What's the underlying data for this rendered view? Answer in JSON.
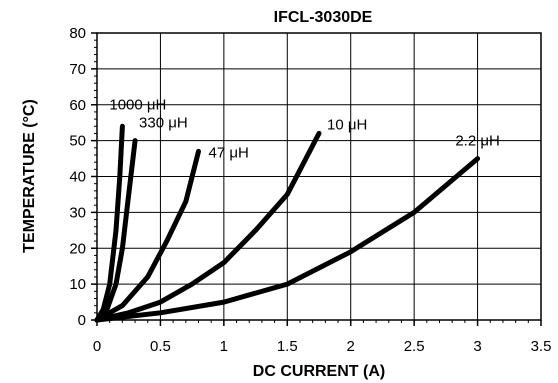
{
  "chart_data": {
    "type": "line",
    "title": "IFCL-3030DE",
    "xlabel": "DC CURRENT (A)",
    "ylabel": "TEMPERATURE (°C)",
    "xlim": [
      0,
      3.5
    ],
    "ylim": [
      0,
      80
    ],
    "x_ticks": [
      "0",
      "0.5",
      "1",
      "1.5",
      "2",
      "2.5",
      "3",
      "3.5"
    ],
    "y_ticks": [
      "0",
      "10",
      "20",
      "30",
      "40",
      "50",
      "60",
      "70",
      "80"
    ],
    "grid": true,
    "line_color": "#000000",
    "series": [
      {
        "name": "1000 μH",
        "points": [
          [
            0,
            0
          ],
          [
            0.05,
            3
          ],
          [
            0.1,
            10
          ],
          [
            0.15,
            25
          ],
          [
            0.18,
            40
          ],
          [
            0.2,
            54
          ]
        ]
      },
      {
        "name": "330 μH",
        "points": [
          [
            0,
            0
          ],
          [
            0.08,
            3
          ],
          [
            0.15,
            10
          ],
          [
            0.2,
            20
          ],
          [
            0.25,
            35
          ],
          [
            0.3,
            50
          ]
        ]
      },
      {
        "name": "47 μH",
        "points": [
          [
            0,
            0
          ],
          [
            0.2,
            4
          ],
          [
            0.4,
            12
          ],
          [
            0.55,
            22
          ],
          [
            0.7,
            33
          ],
          [
            0.8,
            47
          ]
        ]
      },
      {
        "name": "10 μH",
        "points": [
          [
            0,
            0
          ],
          [
            0.25,
            2
          ],
          [
            0.5,
            5
          ],
          [
            0.75,
            10
          ],
          [
            1.0,
            16
          ],
          [
            1.25,
            25
          ],
          [
            1.5,
            35
          ],
          [
            1.75,
            52
          ]
        ]
      },
      {
        "name": "2.2 μH",
        "points": [
          [
            0,
            0
          ],
          [
            0.5,
            2
          ],
          [
            1.0,
            5
          ],
          [
            1.5,
            10
          ],
          [
            2.0,
            19
          ],
          [
            2.5,
            30
          ],
          [
            3.0,
            45
          ]
        ]
      }
    ]
  }
}
